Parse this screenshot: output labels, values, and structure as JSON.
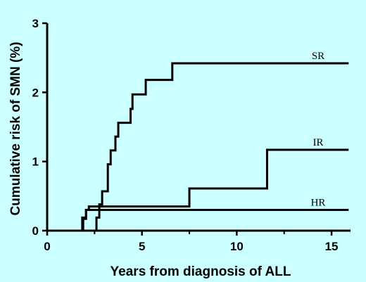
{
  "chart_data": {
    "type": "line",
    "step": true,
    "xlabel": "Years from diagnosis of ALL",
    "ylabel": "Cumulative risk of SMN (%)",
    "xlim": [
      0,
      16
    ],
    "ylim": [
      0,
      3
    ],
    "xticks": [
      "0",
      "5",
      "10",
      "15"
    ],
    "yticks": [
      "0",
      "1",
      "2",
      "3"
    ],
    "grid": false,
    "series": [
      {
        "name": "SR",
        "x": [
          0,
          2.6,
          2.75,
          2.9,
          3.2,
          3.35,
          3.6,
          3.75,
          3.9,
          4.4,
          4.5,
          4.55,
          5.2,
          6.6,
          15.9
        ],
        "y": [
          0,
          0.19,
          0.38,
          0.57,
          0.96,
          1.16,
          1.36,
          1.56,
          1.56,
          1.76,
          1.97,
          1.97,
          2.18,
          2.42,
          2.42
        ]
      },
      {
        "name": "IR",
        "x": [
          0,
          1.9,
          2.05,
          2.2,
          7.5,
          11.6,
          15.9
        ],
        "y": [
          0,
          0.17,
          0.3,
          0.35,
          0.61,
          1.17,
          1.17
        ]
      },
      {
        "name": "HR",
        "x": [
          0,
          1.85,
          2.05,
          15.9
        ],
        "y": [
          0,
          0.19,
          0.3,
          0.3
        ]
      }
    ]
  }
}
